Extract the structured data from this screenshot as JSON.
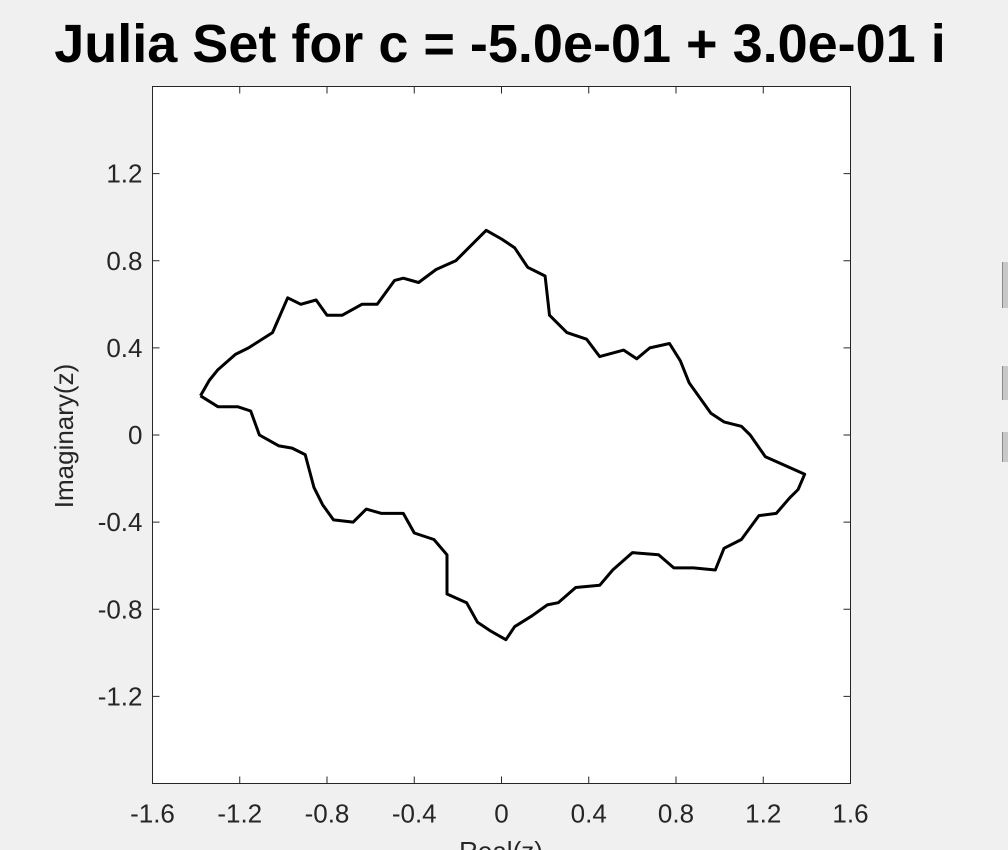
{
  "chart_data": {
    "type": "line",
    "title": "Julia Set for c = -5.0e-01 + 3.0e-01 i",
    "xlabel": "Real(z)",
    "ylabel": "Imaginary(z)",
    "xlim": [
      -1.6,
      1.6
    ],
    "ylim": [
      -1.6,
      1.6
    ],
    "x_ticks": [
      "-1.6",
      "-1.2",
      "-0.8",
      "-0.4",
      "0",
      "0.4",
      "0.8",
      "1.2",
      "1.6"
    ],
    "y_ticks": [
      "1.2",
      "0.8",
      "0.4",
      "0",
      "-0.4",
      "-0.8",
      "-1.2"
    ],
    "grid": false,
    "legend": "none",
    "line_color": "#000000",
    "series": [
      {
        "x": [
          -1.38,
          -1.34,
          -1.3,
          -1.22,
          -1.16,
          -1.05,
          -0.98,
          -0.92,
          -0.85,
          -0.8,
          -0.73,
          -0.64,
          -0.57,
          -0.49,
          -0.45,
          -0.38,
          -0.3,
          -0.21,
          -0.15,
          -0.07,
          0.0,
          0.06,
          0.12,
          0.2,
          0.22,
          0.3,
          0.39,
          0.45,
          0.56,
          0.62,
          0.68,
          0.77,
          0.82,
          0.86,
          0.96,
          1.02,
          1.1,
          1.14,
          1.21,
          1.3,
          1.39,
          1.36,
          1.32,
          1.26,
          1.18,
          1.1,
          1.02,
          0.98,
          0.88,
          0.79,
          0.72,
          0.6,
          0.51,
          0.45,
          0.34,
          0.26,
          0.21,
          0.14,
          0.06,
          0.02,
          -0.05,
          -0.11,
          -0.16,
          -0.25,
          -0.25,
          -0.31,
          -0.4,
          -0.45,
          -0.55,
          -0.62,
          -0.68,
          -0.77,
          -0.82,
          -0.86,
          -0.9,
          -0.96,
          -1.02,
          -1.11,
          -1.15,
          -1.21,
          -1.3,
          -1.38
        ],
        "y": [
          0.18,
          0.25,
          0.3,
          0.37,
          0.4,
          0.47,
          0.63,
          0.6,
          0.62,
          0.55,
          0.55,
          0.6,
          0.6,
          0.71,
          0.72,
          0.7,
          0.76,
          0.8,
          0.86,
          0.94,
          0.9,
          0.86,
          0.77,
          0.73,
          0.55,
          0.47,
          0.44,
          0.36,
          0.39,
          0.35,
          0.4,
          0.42,
          0.34,
          0.24,
          0.1,
          0.06,
          0.04,
          0.0,
          -0.1,
          -0.14,
          -0.18,
          -0.25,
          -0.29,
          -0.36,
          -0.37,
          -0.48,
          -0.52,
          -0.62,
          -0.61,
          -0.61,
          -0.55,
          -0.54,
          -0.62,
          -0.69,
          -0.7,
          -0.77,
          -0.78,
          -0.83,
          -0.88,
          -0.94,
          -0.9,
          -0.86,
          -0.77,
          -0.73,
          -0.55,
          -0.48,
          -0.45,
          -0.36,
          -0.36,
          -0.34,
          -0.4,
          -0.39,
          -0.32,
          -0.24,
          -0.09,
          -0.06,
          -0.05,
          -0.0,
          0.11,
          0.13,
          0.13,
          0.18
        ]
      }
    ]
  }
}
